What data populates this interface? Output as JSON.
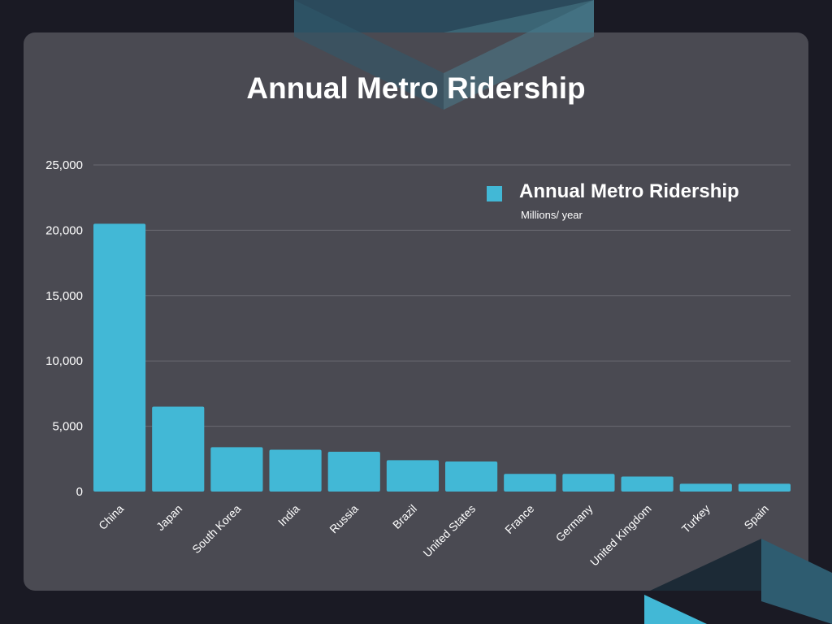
{
  "colors": {
    "page_bg": "#1a1a24",
    "card_bg": "#4a4a52",
    "bar": "#42b8d6",
    "grid": "#6a6a72",
    "text": "#ffffff"
  },
  "chart_data": {
    "type": "bar",
    "title": "Annual Metro Ridership",
    "categories": [
      "China",
      "Japan",
      "South Korea",
      "India",
      "Russia",
      "Brazil",
      "United States",
      "France",
      "Germany",
      "United Kingdom",
      "Turkey",
      "Spain"
    ],
    "series": [
      {
        "name": "Annual Metro Ridership",
        "subtitle": "Millions/ year",
        "values": [
          20500,
          6500,
          3400,
          3200,
          3050,
          2400,
          2300,
          1350,
          1350,
          1150,
          600,
          600
        ]
      }
    ],
    "ylim": [
      0,
      25000
    ],
    "yticks": [
      0,
      5000,
      10000,
      15000,
      20000,
      25000
    ],
    "ytick_labels": [
      "0",
      "5,000",
      "10,000",
      "15,000",
      "20,000",
      "25,000"
    ],
    "xlabel": "",
    "ylabel": "",
    "grid": true,
    "legend": "top-right"
  }
}
